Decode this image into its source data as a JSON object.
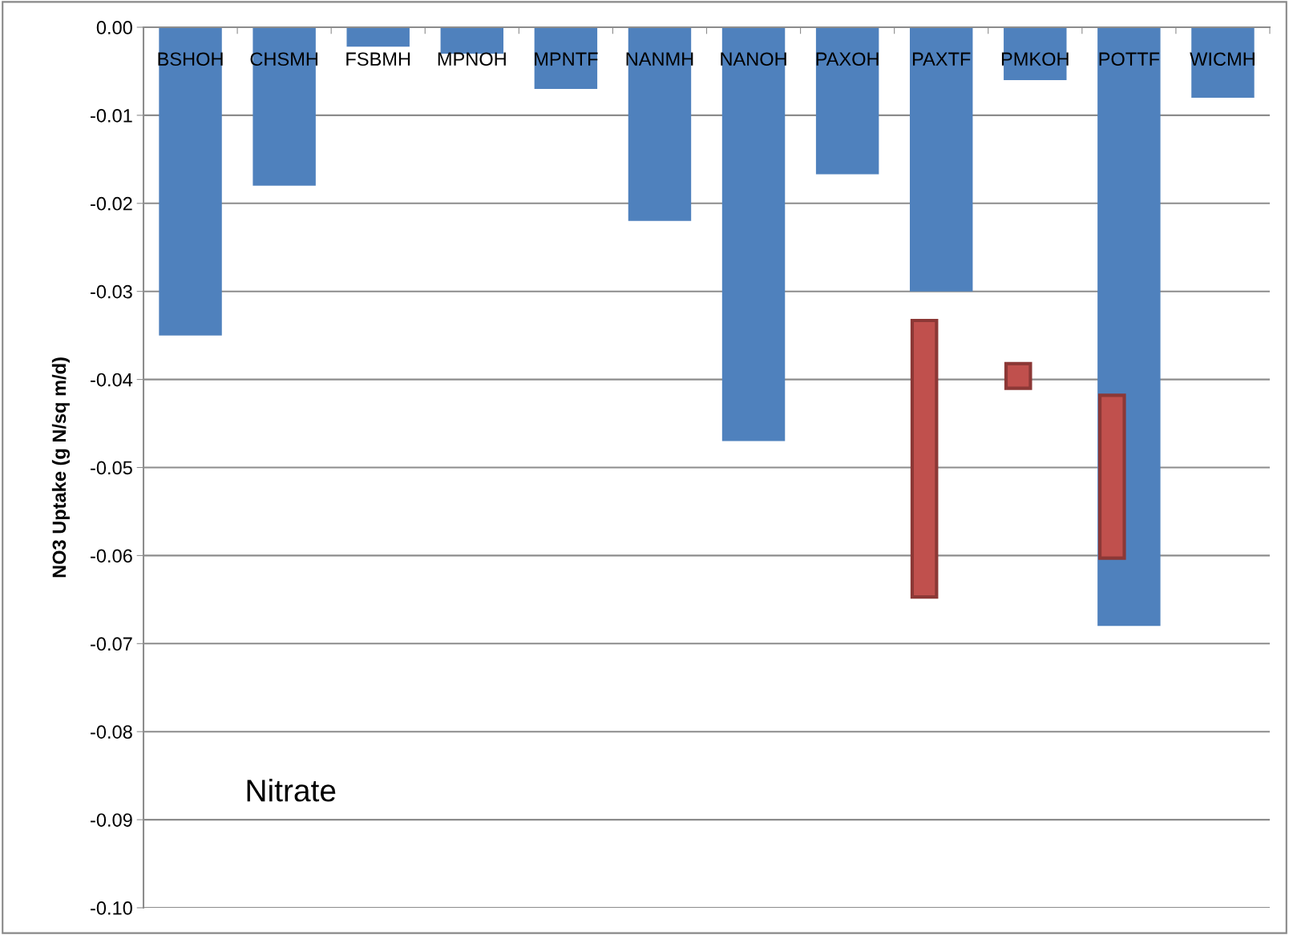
{
  "chart_data": {
    "type": "bar",
    "ylabel": "NO3 Uptake (g N/sq m/d)",
    "categories": [
      "BSHOH",
      "CHSMH",
      "FSBMH",
      "MPNOH",
      "MPNTF",
      "NANMH",
      "NANOH",
      "PAXOH",
      "PAXTF",
      "PMKOH",
      "POTTF",
      "WICMH"
    ],
    "series": [
      {
        "color": "#4f81bd",
        "values": [
          -0.035,
          -0.018,
          -0.0022,
          -0.003,
          -0.007,
          -0.022,
          -0.047,
          -0.0167,
          -0.03,
          -0.006,
          -0.068,
          -0.008
        ]
      },
      {
        "color": "#c0504d",
        "base": [
          null,
          null,
          null,
          null,
          null,
          null,
          null,
          null,
          -0.0333,
          -0.0382,
          -0.0418,
          null
        ],
        "values": [
          null,
          null,
          null,
          null,
          null,
          null,
          null,
          null,
          -0.0314,
          -0.0028,
          -0.0185,
          null
        ]
      }
    ],
    "ylim": [
      -0.1,
      0.0
    ],
    "yticks": [
      {
        "value": 0.0,
        "label": "0.00"
      },
      {
        "value": -0.01,
        "label": "-0.01"
      },
      {
        "value": -0.02,
        "label": "-0.02"
      },
      {
        "value": -0.03,
        "label": "-0.03"
      },
      {
        "value": -0.04,
        "label": "-0.04"
      },
      {
        "value": -0.05,
        "label": "-0.05"
      },
      {
        "value": -0.06,
        "label": "-0.06"
      },
      {
        "value": -0.07,
        "label": "-0.07"
      },
      {
        "value": -0.08,
        "label": "-0.08"
      },
      {
        "value": -0.09,
        "label": "-0.09"
      },
      {
        "value": -0.1,
        "label": "-0.10"
      }
    ],
    "grid": "y",
    "annotations": [
      "Nitrate"
    ]
  }
}
